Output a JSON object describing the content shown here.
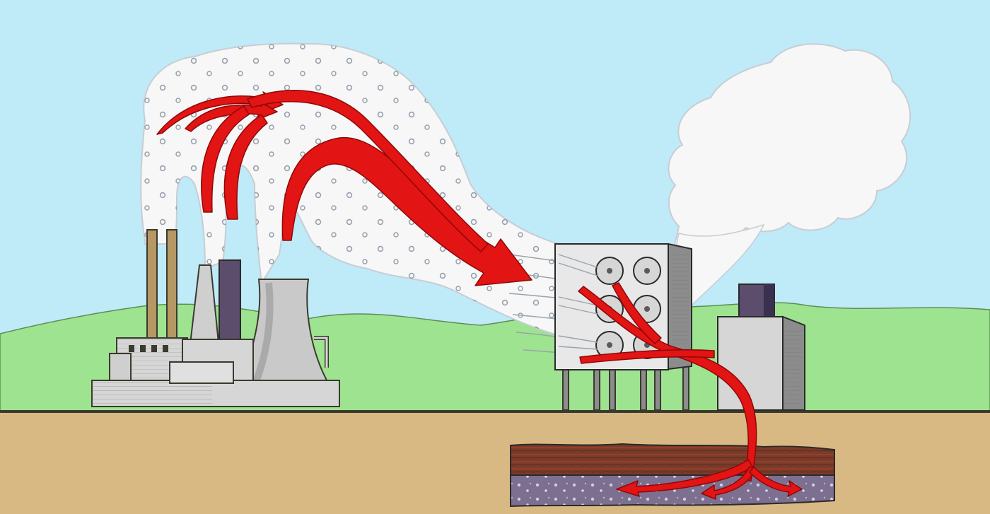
{
  "scene": {
    "subject": "carbon-capture-and-storage",
    "colors": {
      "sky": "#bfeaf8",
      "hills": "#9ee38f",
      "ground": "#d8b984",
      "horizon": "#3a3a2e",
      "smoke": "#f7f7f7",
      "smoke_outline": "#c8cdd4",
      "arrow": "#e21414",
      "arrow_edge": "#8f0707",
      "factory": "#d6d6d6",
      "factory_shadow": "#8c8c8c",
      "stack_tan": "#b59863",
      "stack_dark": "#5b4d6b",
      "capture_panel": "#e8e8e8",
      "rock_top": "#7a3b2a",
      "rock_bottom": "#7d6f8f"
    },
    "icons": [
      "power-plant-icon",
      "capture-unit-icon",
      "storage-building-icon",
      "co2-arrow-icon",
      "rock-layer-icon"
    ]
  }
}
